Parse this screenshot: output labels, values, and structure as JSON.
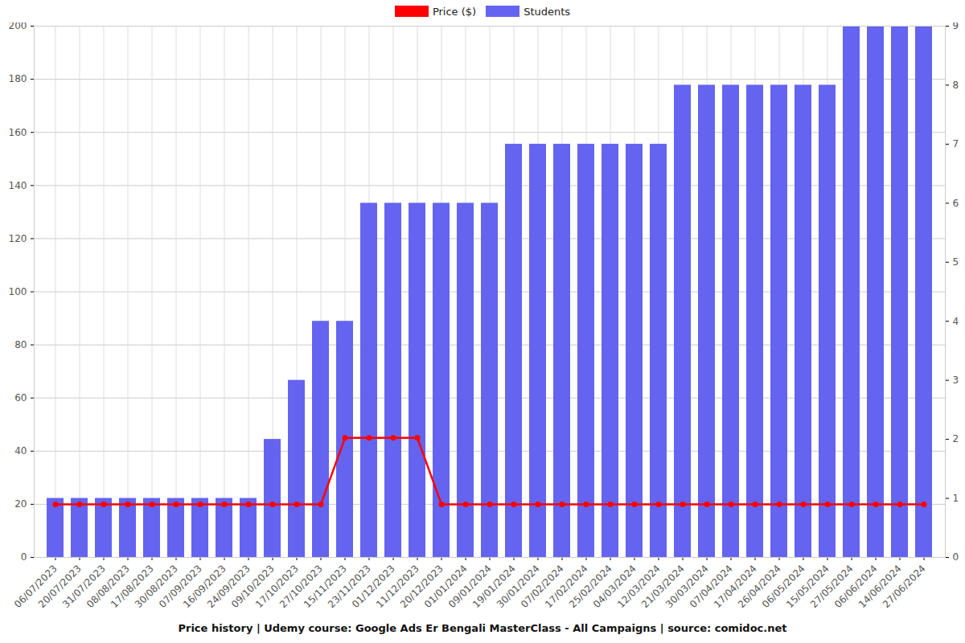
{
  "chart_data": {
    "type": "bar",
    "title": "Price history | Udemy course: Google Ads Er Bengali MasterClass - All Campaigns | source: comidoc.net",
    "categories": [
      "06/07/2023",
      "20/07/2023",
      "31/07/2023",
      "08/08/2023",
      "17/08/2023",
      "30/08/2023",
      "07/09/2023",
      "16/09/2023",
      "24/09/2023",
      "09/10/2023",
      "17/10/2023",
      "27/10/2023",
      "15/11/2023",
      "23/11/2023",
      "01/12/2023",
      "11/12/2023",
      "20/12/2023",
      "01/01/2024",
      "09/01/2024",
      "19/01/2024",
      "30/01/2024",
      "07/02/2024",
      "17/02/2024",
      "25/02/2024",
      "04/03/2024",
      "12/03/2024",
      "21/03/2024",
      "30/03/2024",
      "07/04/2024",
      "17/04/2024",
      "26/04/2024",
      "06/05/2024",
      "15/05/2024",
      "27/05/2024",
      "06/06/2024",
      "14/06/2024",
      "27/06/2024"
    ],
    "series": [
      {
        "name": "Price ($)",
        "type": "line",
        "marker": "circle",
        "color": "#ff0000",
        "values": [
          19.99,
          19.99,
          19.99,
          19.99,
          19.99,
          19.99,
          19.99,
          19.99,
          19.99,
          19.99,
          19.99,
          19.99,
          44.99,
          44.99,
          44.99,
          44.99,
          19.99,
          19.99,
          19.99,
          19.99,
          19.99,
          19.99,
          19.99,
          19.99,
          19.99,
          19.99,
          19.99,
          19.99,
          19.99,
          19.99,
          19.99,
          19.99,
          19.99,
          19.99,
          19.99,
          19.99,
          19.99
        ]
      },
      {
        "name": "Students",
        "type": "bar",
        "axis": "y2",
        "color": "#6464f0",
        "values": [
          1,
          1,
          1,
          1,
          1,
          1,
          1,
          1,
          1,
          2,
          3,
          4,
          4,
          6,
          6,
          6,
          6,
          6,
          6,
          7,
          7,
          7,
          7,
          7,
          7,
          7,
          8,
          8,
          8,
          8,
          8,
          8,
          8,
          9,
          9,
          9,
          9
        ]
      }
    ],
    "ylim": [
      0,
      200
    ],
    "yticks": [
      0,
      20,
      40,
      60,
      80,
      100,
      120,
      140,
      160,
      180,
      200
    ],
    "y2lim": [
      0,
      9
    ],
    "y2ticks": [
      0,
      1,
      2,
      3,
      4,
      5,
      6,
      7,
      8,
      9
    ],
    "grid": true,
    "legend": "top"
  }
}
